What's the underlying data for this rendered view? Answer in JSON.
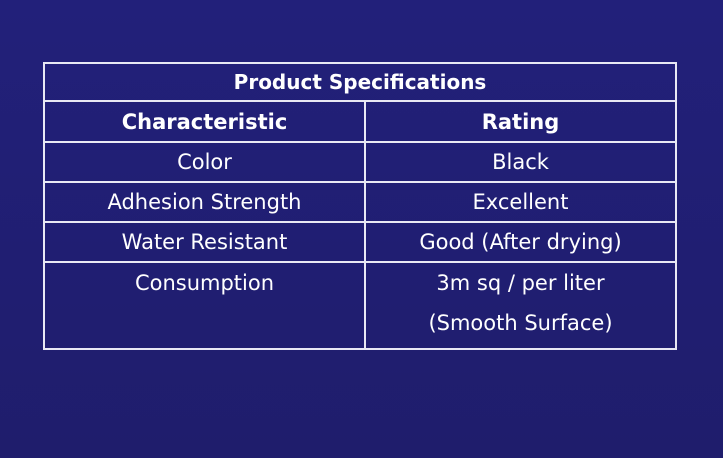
{
  "table": {
    "title": "Product Specifications",
    "headers": [
      "Characteristic",
      "Rating"
    ],
    "rows": [
      [
        "Color",
        "Black"
      ],
      [
        "Adhesion Strength",
        "Excellent"
      ],
      [
        "Water Resistant",
        "Good (After drying)"
      ],
      [
        "Consumption",
        [
          "3m sq / per liter",
          "(Smooth Surface)"
        ]
      ]
    ]
  }
}
